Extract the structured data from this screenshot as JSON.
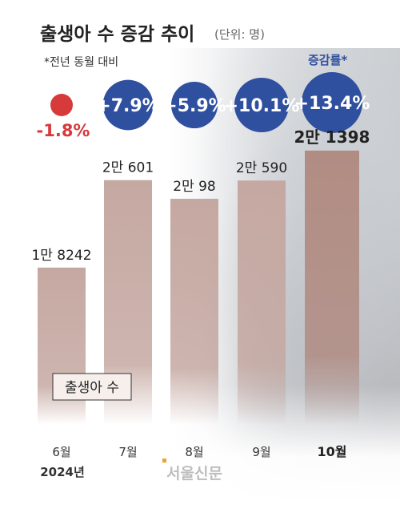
{
  "header": {
    "title": "출생아 수 증감 추이",
    "unit": "(단위: 명)",
    "note": "*전년 동월 대비",
    "rate_legend": "증감률*"
  },
  "series_label": "출생아 수",
  "year_label": "2024년",
  "watermark": "서울신문",
  "colors": {
    "bar": "#c5a8a1",
    "bar_last": "#b18c83",
    "rate_circle": "#2f4f9f",
    "negative": "#d63a3a"
  },
  "chart_data": {
    "type": "bar",
    "categories": [
      "6월",
      "7월",
      "8월",
      "9월",
      "10월"
    ],
    "values": [
      18242,
      20601,
      20098,
      20590,
      21398
    ],
    "value_labels": [
      "1만 8242",
      "2만 601",
      "2만 98",
      "2만 590",
      "2만 1398"
    ],
    "growth_rates": [
      -1.8,
      7.9,
      5.9,
      10.1,
      13.4
    ],
    "growth_labels": [
      "-1.8%",
      "+7.9%",
      "+5.9%",
      "+10.1%",
      "+13.4%"
    ],
    "title": "출생아 수 증감 추이",
    "xlabel": "",
    "ylabel": "",
    "ylim": [
      14000,
      22000
    ],
    "grid": false,
    "legend": "none"
  }
}
